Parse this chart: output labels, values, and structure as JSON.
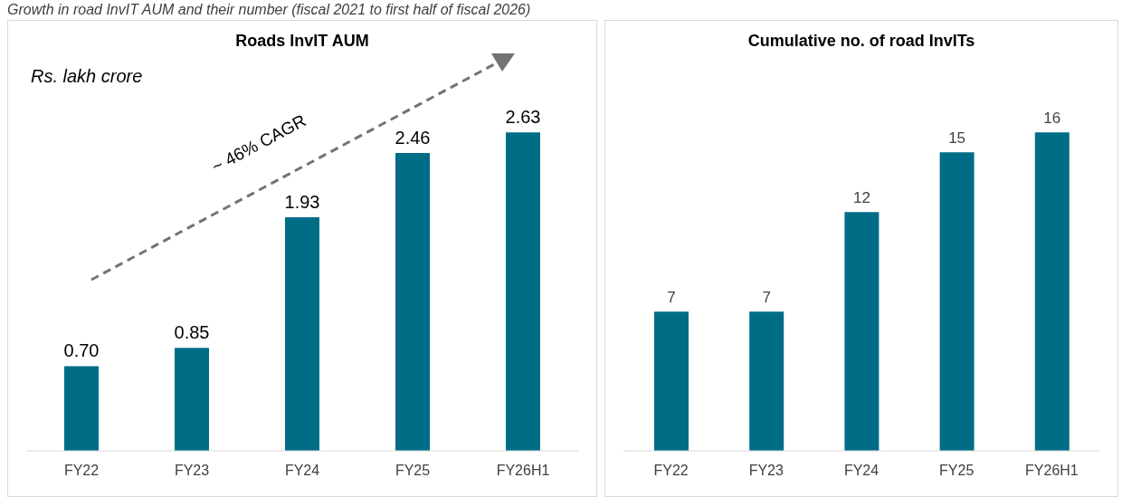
{
  "chart_data": [
    {
      "type": "bar",
      "title": "Roads InvIT AUM",
      "ylabel": "Rs. lakh crore",
      "categories": [
        "FY22",
        "FY23",
        "FY24",
        "FY25",
        "FY26H1"
      ],
      "values": [
        0.7,
        0.85,
        1.93,
        2.46,
        2.63
      ],
      "value_labels": [
        "0.70",
        "0.85",
        "1.93",
        "2.46",
        "2.63"
      ],
      "color": "#006d87",
      "annotations": [
        "Growth in road InvIT AUM and their number (fiscal 2021 to first half of fiscal 2026)",
        "~ 46% CAGR"
      ],
      "grid": false,
      "legend": false
    },
    {
      "type": "bar",
      "title": "Cumulative no. of road InvITs",
      "categories": [
        "FY22",
        "FY23",
        "FY24",
        "FY25",
        "FY26H1"
      ],
      "values": [
        7,
        7,
        12,
        15,
        16
      ],
      "data_labels": true,
      "color": "#006d87",
      "grid": false,
      "legend": false
    }
  ]
}
